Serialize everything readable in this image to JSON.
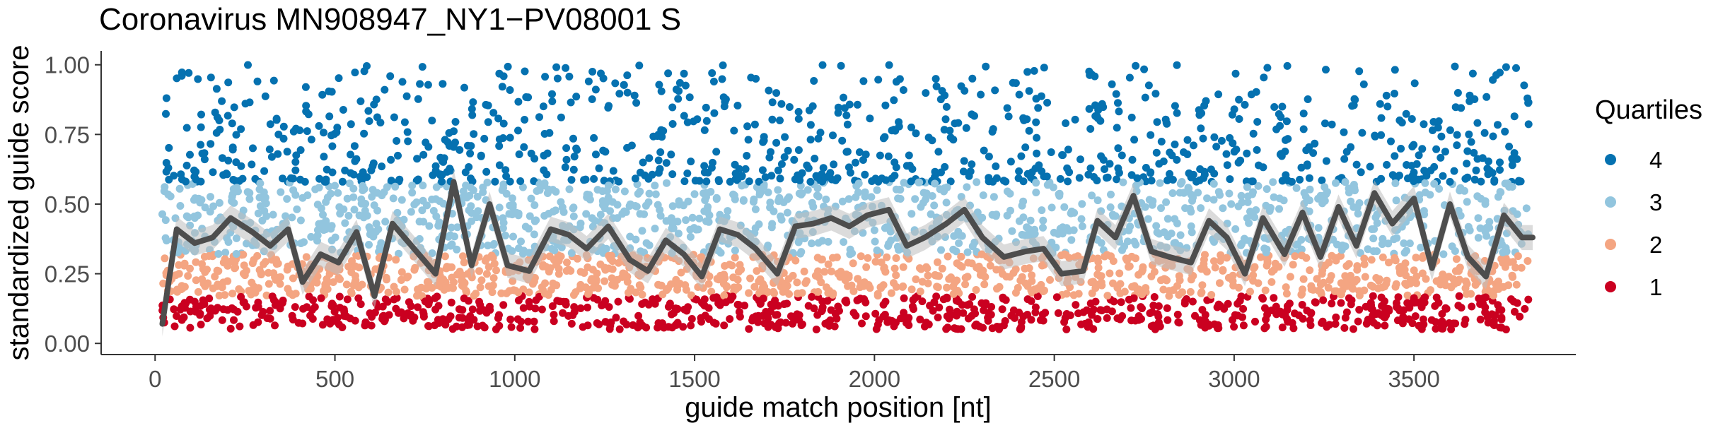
{
  "chart_data": {
    "type": "scatter",
    "title": "Coronavirus MN908947_NY1−PV08001 S",
    "xlabel": "guide match position [nt]",
    "ylabel": "standardized guide score",
    "xlim": [
      -150,
      3950
    ],
    "ylim": [
      -0.04,
      1.05
    ],
    "x_ticks": [
      0,
      500,
      1000,
      1500,
      2000,
      2500,
      3000,
      3500
    ],
    "x_tick_labels": [
      "0",
      "500",
      "1000",
      "1500",
      "2000",
      "2500",
      "3000",
      "3500"
    ],
    "y_ticks": [
      0,
      0.25,
      0.5,
      0.75,
      1
    ],
    "y_tick_labels": [
      "0.00",
      "0.25",
      "0.50",
      "0.75",
      "1.00"
    ],
    "grid": false,
    "legend": {
      "title": "Quartiles",
      "position": "right",
      "entries": [
        {
          "label": "4",
          "color": "#0571b0"
        },
        {
          "label": "3",
          "color": "#92c5de"
        },
        {
          "label": "2",
          "color": "#f4a582"
        },
        {
          "label": "1",
          "color": "#ca0020"
        }
      ]
    },
    "quartile_ranges": {
      "1": [
        0.05,
        0.17
      ],
      "2": [
        0.17,
        0.32
      ],
      "3": [
        0.32,
        0.58
      ],
      "4": [
        0.58,
        1.0
      ]
    },
    "x_range_of_points": [
      20,
      3820
    ],
    "approx_point_count": 3800,
    "trend_line": {
      "color": "#4d4d4d",
      "band_color": "#bdbdbd",
      "x": [
        20,
        60,
        110,
        160,
        210,
        270,
        320,
        370,
        410,
        460,
        510,
        560,
        610,
        660,
        720,
        780,
        830,
        880,
        930,
        980,
        1040,
        1100,
        1150,
        1200,
        1260,
        1320,
        1370,
        1420,
        1470,
        1520,
        1570,
        1620,
        1670,
        1730,
        1780,
        1830,
        1880,
        1930,
        1980,
        2040,
        2090,
        2140,
        2200,
        2250,
        2300,
        2360,
        2420,
        2470,
        2520,
        2580,
        2620,
        2670,
        2720,
        2770,
        2820,
        2880,
        2930,
        2980,
        3030,
        3080,
        3140,
        3190,
        3240,
        3290,
        3340,
        3390,
        3440,
        3500,
        3550,
        3600,
        3650,
        3700,
        3750,
        3800,
        3830
      ],
      "y": [
        0.07,
        0.41,
        0.36,
        0.38,
        0.45,
        0.4,
        0.35,
        0.41,
        0.22,
        0.32,
        0.29,
        0.4,
        0.17,
        0.43,
        0.34,
        0.25,
        0.58,
        0.28,
        0.5,
        0.28,
        0.26,
        0.41,
        0.39,
        0.34,
        0.42,
        0.3,
        0.26,
        0.37,
        0.32,
        0.24,
        0.41,
        0.39,
        0.34,
        0.25,
        0.42,
        0.43,
        0.45,
        0.42,
        0.46,
        0.48,
        0.35,
        0.38,
        0.43,
        0.48,
        0.38,
        0.31,
        0.33,
        0.34,
        0.25,
        0.26,
        0.44,
        0.38,
        0.53,
        0.33,
        0.31,
        0.29,
        0.44,
        0.38,
        0.25,
        0.45,
        0.32,
        0.47,
        0.31,
        0.49,
        0.35,
        0.54,
        0.43,
        0.52,
        0.27,
        0.5,
        0.31,
        0.24,
        0.46,
        0.38,
        0.38
      ]
    }
  }
}
